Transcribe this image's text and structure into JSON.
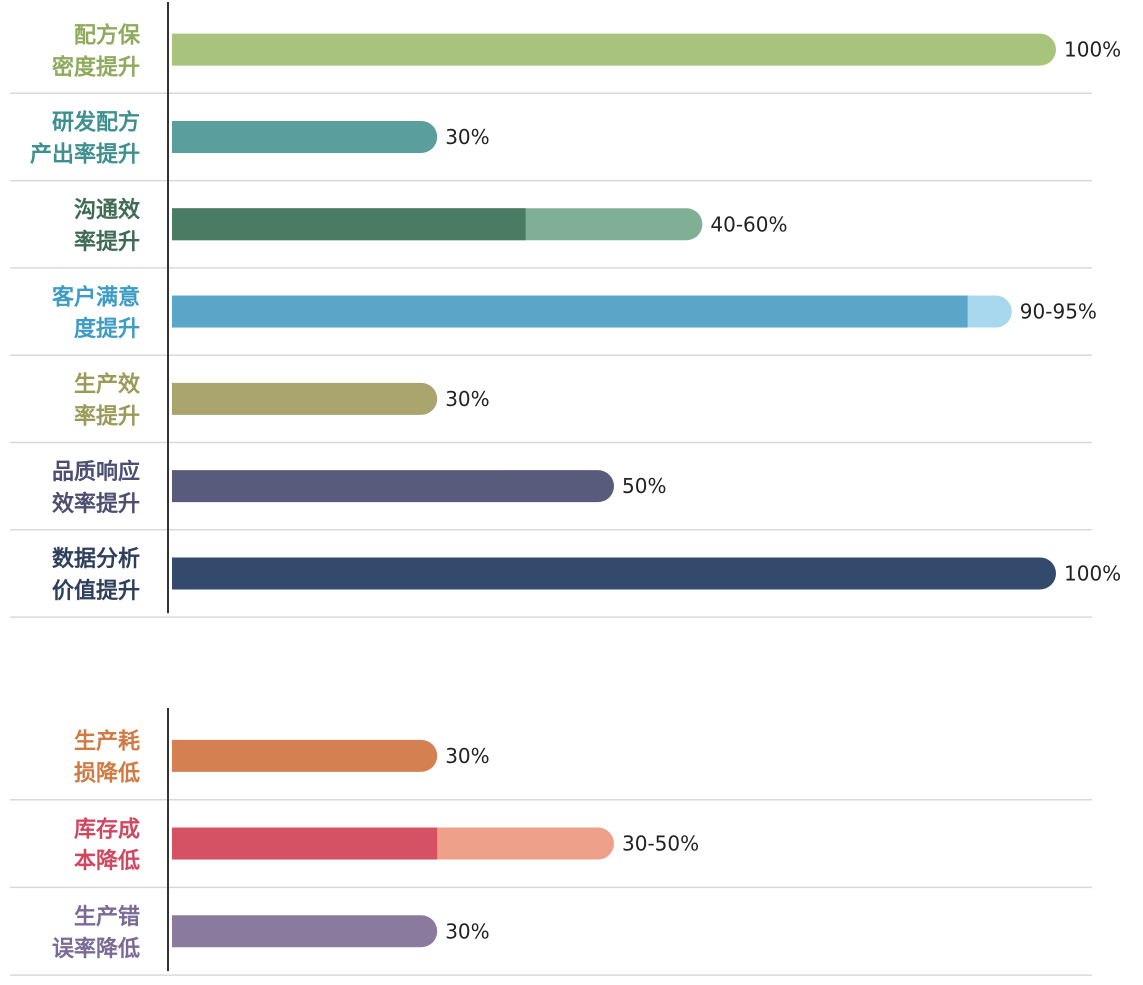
{
  "chart_data": [
    {
      "type": "bar",
      "orientation": "horizontal",
      "categories": [
        [
          "配方保",
          "密度提升"
        ],
        [
          "研发配方",
          "产出率提升"
        ],
        [
          "沟通效",
          "率提升"
        ],
        [
          "客户满意",
          "度提升"
        ],
        [
          "生产效",
          "率提升"
        ],
        [
          "品质响应",
          "效率提升"
        ],
        [
          "数据分析",
          "价值提升"
        ]
      ],
      "values": [
        {
          "low": 100,
          "high": 100
        },
        {
          "low": 30,
          "high": 30
        },
        {
          "low": 40,
          "high": 60
        },
        {
          "low": 90,
          "high": 95
        },
        {
          "low": 30,
          "high": 30
        },
        {
          "low": 50,
          "high": 50
        },
        {
          "low": 100,
          "high": 100
        }
      ],
      "value_labels": [
        "100%",
        "30%",
        "40-60%",
        "90-95%",
        "30%",
        "50%",
        "100%"
      ],
      "colors": [
        {
          "label": "#8faa5c",
          "bar": "#a8c47c",
          "range": "#a8c47c"
        },
        {
          "label": "#3e9090",
          "bar": "#5a9e9e",
          "range": "#5a9e9e"
        },
        {
          "label": "#3f6b55",
          "bar": "#4a7c64",
          "range": "#7fb096"
        },
        {
          "label": "#3c9cc4",
          "bar": "#5aa6c8",
          "range": "#a8d8ee"
        },
        {
          "label": "#9c9a58",
          "bar": "#aaa46e",
          "range": "#aaa46e"
        },
        {
          "label": "#4e4e72",
          "bar": "#585b7c",
          "range": "#585b7c"
        },
        {
          "label": "#2e3f5c",
          "bar": "#344a6c",
          "range": "#344a6c"
        }
      ],
      "xlim": [
        0,
        100
      ],
      "grid": false
    },
    {
      "type": "bar",
      "orientation": "horizontal",
      "categories": [
        [
          "生产耗",
          "损降低"
        ],
        [
          "库存成",
          "本降低"
        ],
        [
          "生产错",
          "误率降低"
        ]
      ],
      "values": [
        {
          "low": 30,
          "high": 30
        },
        {
          "low": 30,
          "high": 50
        },
        {
          "low": 30,
          "high": 30
        }
      ],
      "value_labels": [
        "30%",
        "30-50%",
        "30%"
      ],
      "colors": [
        {
          "label": "#d07a44",
          "bar": "#d48050",
          "range": "#d48050"
        },
        {
          "label": "#d04860",
          "bar": "#d45264",
          "range": "#eea08a"
        },
        {
          "label": "#7a6a96",
          "bar": "#8a7a9e",
          "range": "#8a7a9e"
        }
      ],
      "xlim": [
        0,
        100
      ],
      "grid": false
    }
  ]
}
